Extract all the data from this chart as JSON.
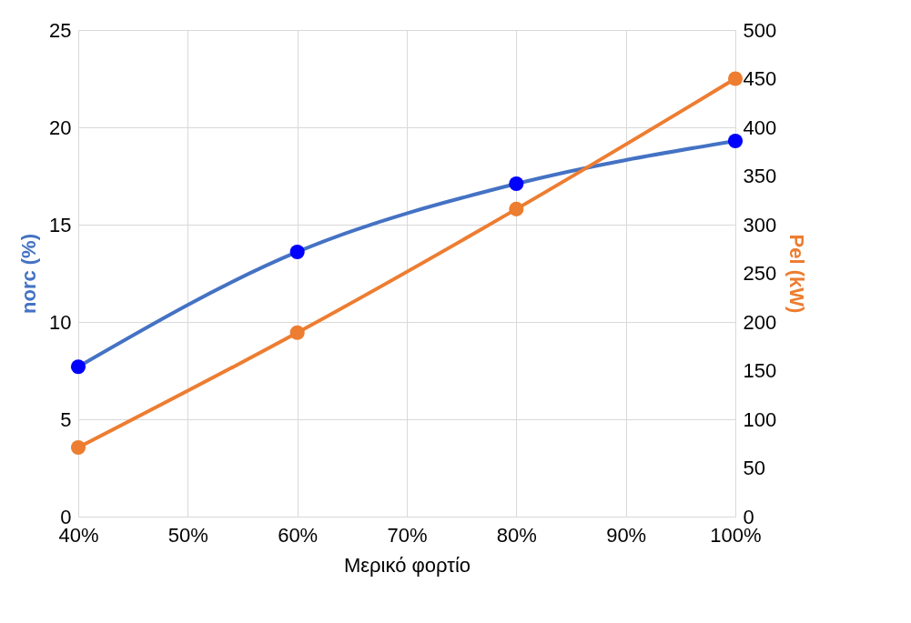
{
  "chart_data": {
    "type": "line",
    "xlabel": "Μερικό φορτίο",
    "ylabel": "norc (%)",
    "y2label": "Pel (kW)",
    "x": [
      40,
      60,
      80,
      100
    ],
    "series": [
      {
        "color": "#4472c4",
        "values": [
          7.7,
          13.6,
          17.1,
          19.3
        ]
      },
      {
        "color": "#ed7d31",
        "values": [
          71,
          189,
          316,
          450
        ],
        "axis": "y2"
      }
    ],
    "xlim": [
      40,
      100
    ],
    "xticks": [
      {
        "value": 40,
        "label": "40%"
      },
      {
        "value": 50,
        "label": "50%"
      },
      {
        "value": 60,
        "label": "60%"
      },
      {
        "value": 70,
        "label": "70%"
      },
      {
        "value": 80,
        "label": "80%"
      },
      {
        "value": 90,
        "label": "90%"
      },
      {
        "value": 100,
        "label": "100%"
      }
    ],
    "ylim": [
      0,
      25
    ],
    "yticks": [
      0,
      5,
      10,
      15,
      20,
      25
    ],
    "y2lim": [
      0,
      500
    ],
    "y2ticks": [
      0,
      50,
      100,
      150,
      200,
      250,
      300,
      350,
      400,
      450,
      500
    ],
    "grid": true,
    "marker": "circle",
    "line_style": "solid"
  }
}
